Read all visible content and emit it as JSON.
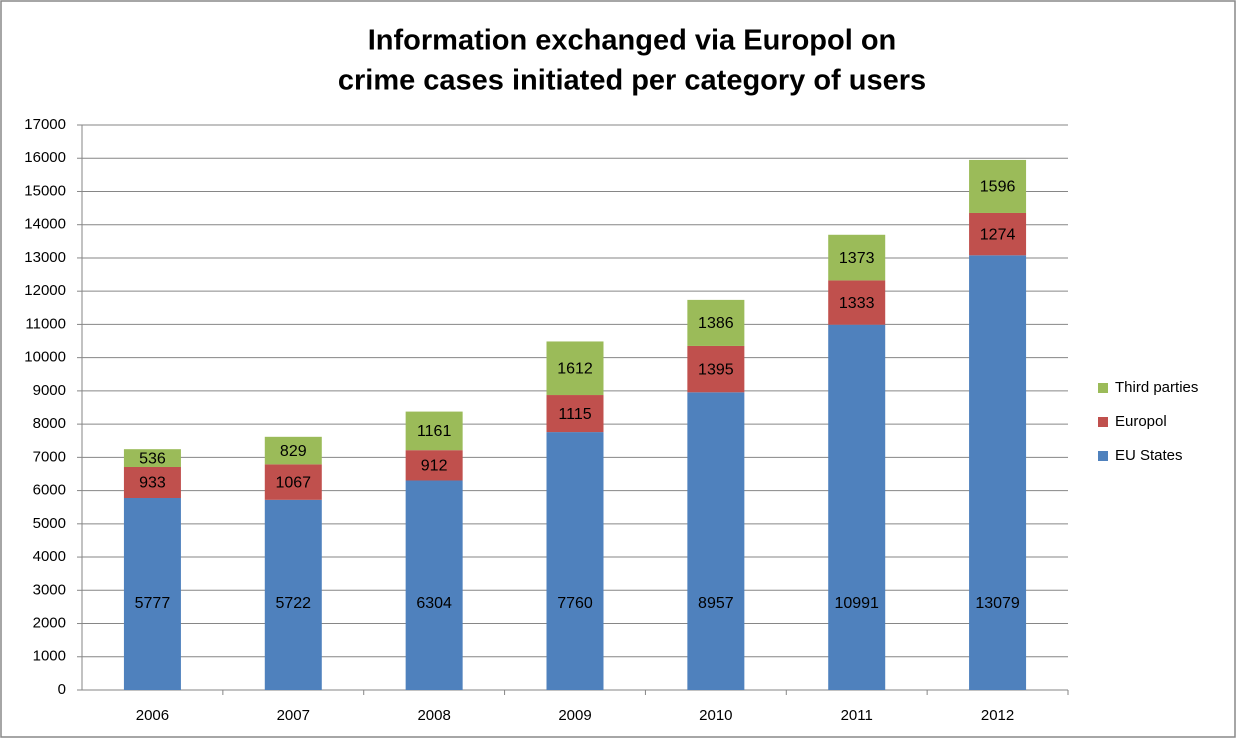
{
  "chart_data": {
    "type": "stacked_bar",
    "title": [
      "Information exchanged via Europol on",
      "crime cases initiated per category of users"
    ],
    "categories": [
      "2006",
      "2007",
      "2008",
      "2009",
      "2010",
      "2011",
      "2012"
    ],
    "series": [
      {
        "name": "EU States",
        "color": "#4f81bd",
        "values": [
          5777,
          5722,
          6304,
          7760,
          8957,
          10991,
          13079
        ]
      },
      {
        "name": "Europol",
        "color": "#c0504d",
        "values": [
          933,
          1067,
          912,
          1115,
          1395,
          1333,
          1274
        ]
      },
      {
        "name": "Third parties",
        "color": "#9bbb59",
        "values": [
          536,
          829,
          1161,
          1612,
          1386,
          1373,
          1596
        ]
      }
    ],
    "ylim": [
      0,
      17000
    ],
    "yticks": [
      0,
      1000,
      2000,
      3000,
      4000,
      5000,
      6000,
      7000,
      8000,
      9000,
      10000,
      11000,
      12000,
      13000,
      14000,
      15000,
      16000,
      17000
    ],
    "grid": true,
    "legend": "right"
  }
}
